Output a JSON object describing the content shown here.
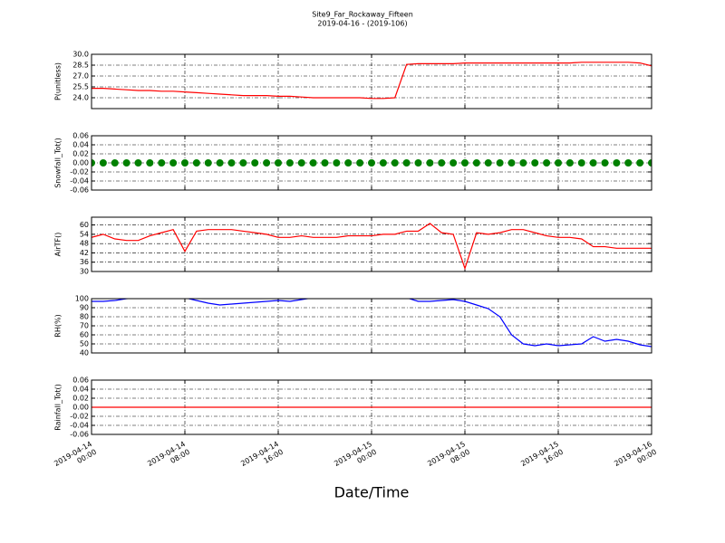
{
  "figure": {
    "title": "Site9_Far_Rockaway_Fifteen",
    "subtitle": "2019-04-16 - (2019-106)",
    "xlabel": "Date/Time"
  },
  "chart_data": [
    {
      "type": "line",
      "ylabel": "P(unitless)",
      "color": "#ff0000",
      "grid": true,
      "xlim": [
        "2019-04-14 00:00",
        "2019-04-16 00:00"
      ],
      "xticks": [
        "2019-04-14 00:00",
        "2019-04-14 08:00",
        "2019-04-14 16:00",
        "2019-04-15 00:00",
        "2019-04-15 08:00",
        "2019-04-15 16:00",
        "2019-04-16 00:00"
      ],
      "ylim": [
        22.5,
        30
      ],
      "yticks": [
        {
          "value": 24,
          "label": "24.0"
        },
        25.5,
        {
          "value": 27,
          "label": "27.0"
        },
        28.5,
        {
          "value": 30,
          "label": "30.0"
        }
      ],
      "x": [
        "2019-04-14 00:00",
        "2019-04-14 01:00",
        "2019-04-14 02:00",
        "2019-04-14 03:00",
        "2019-04-14 04:00",
        "2019-04-14 05:00",
        "2019-04-14 06:00",
        "2019-04-14 07:00",
        "2019-04-14 08:00",
        "2019-04-14 09:00",
        "2019-04-14 10:00",
        "2019-04-14 11:00",
        "2019-04-14 12:00",
        "2019-04-14 13:00",
        "2019-04-14 14:00",
        "2019-04-14 15:00",
        "2019-04-14 16:00",
        "2019-04-14 17:00",
        "2019-04-14 18:00",
        "2019-04-14 19:00",
        "2019-04-14 20:00",
        "2019-04-14 21:00",
        "2019-04-14 22:00",
        "2019-04-14 23:00",
        "2019-04-15 00:00",
        "2019-04-15 01:00",
        "2019-04-15 02:00",
        "2019-04-15 03:00",
        "2019-04-15 04:00",
        "2019-04-15 05:00",
        "2019-04-15 06:00",
        "2019-04-15 07:00",
        "2019-04-15 08:00",
        "2019-04-15 09:00",
        "2019-04-15 10:00",
        "2019-04-15 11:00",
        "2019-04-15 12:00",
        "2019-04-15 13:00",
        "2019-04-15 14:00",
        "2019-04-15 15:00",
        "2019-04-15 16:00",
        "2019-04-15 17:00",
        "2019-04-15 18:00",
        "2019-04-15 19:00",
        "2019-04-15 20:00",
        "2019-04-15 21:00",
        "2019-04-15 22:00",
        "2019-04-15 23:00",
        "2019-04-16 00:00"
      ],
      "values": [
        25.3,
        25.3,
        25.2,
        25.1,
        25.0,
        25.0,
        24.9,
        24.9,
        24.8,
        24.7,
        24.6,
        24.5,
        24.4,
        24.3,
        24.3,
        24.3,
        24.2,
        24.2,
        24.1,
        24.0,
        24.0,
        24.0,
        24.0,
        24.0,
        23.9,
        23.9,
        24.0,
        28.6,
        28.7,
        28.7,
        28.7,
        28.7,
        28.8,
        28.8,
        28.8,
        28.8,
        28.8,
        28.8,
        28.8,
        28.8,
        28.8,
        28.8,
        28.9,
        28.9,
        28.9,
        28.9,
        28.9,
        28.8,
        28.4
      ]
    },
    {
      "type": "scatter",
      "ylabel": "Snowfall_Tot()",
      "color": "#008000",
      "grid": true,
      "xlim": [
        "2019-04-14 00:00",
        "2019-04-16 00:00"
      ],
      "xticks": [
        "2019-04-14 00:00",
        "2019-04-14 08:00",
        "2019-04-14 16:00",
        "2019-04-15 00:00",
        "2019-04-15 08:00",
        "2019-04-15 16:00",
        "2019-04-16 00:00"
      ],
      "ylim": [
        -0.06,
        0.06
      ],
      "yticks": [
        -0.06,
        -0.04,
        -0.02,
        {
          "value": 0,
          "label": "0.00"
        },
        0.02,
        0.04,
        0.06
      ],
      "x": [
        "2019-04-14 00:00",
        "2019-04-14 01:00",
        "2019-04-14 02:00",
        "2019-04-14 03:00",
        "2019-04-14 04:00",
        "2019-04-14 05:00",
        "2019-04-14 06:00",
        "2019-04-14 07:00",
        "2019-04-14 08:00",
        "2019-04-14 09:00",
        "2019-04-14 10:00",
        "2019-04-14 11:00",
        "2019-04-14 12:00",
        "2019-04-14 13:00",
        "2019-04-14 14:00",
        "2019-04-14 15:00",
        "2019-04-14 16:00",
        "2019-04-14 17:00",
        "2019-04-14 18:00",
        "2019-04-14 19:00",
        "2019-04-14 20:00",
        "2019-04-14 21:00",
        "2019-04-14 22:00",
        "2019-04-14 23:00",
        "2019-04-15 00:00",
        "2019-04-15 01:00",
        "2019-04-15 02:00",
        "2019-04-15 03:00",
        "2019-04-15 04:00",
        "2019-04-15 05:00",
        "2019-04-15 06:00",
        "2019-04-15 07:00",
        "2019-04-15 08:00",
        "2019-04-15 09:00",
        "2019-04-15 10:00",
        "2019-04-15 11:00",
        "2019-04-15 12:00",
        "2019-04-15 13:00",
        "2019-04-15 14:00",
        "2019-04-15 15:00",
        "2019-04-15 16:00",
        "2019-04-15 17:00",
        "2019-04-15 18:00",
        "2019-04-15 19:00",
        "2019-04-15 20:00",
        "2019-04-15 21:00",
        "2019-04-15 22:00",
        "2019-04-15 23:00",
        "2019-04-16 00:00"
      ],
      "values": [
        0,
        0,
        0,
        0,
        0,
        0,
        0,
        0,
        0,
        0,
        0,
        0,
        0,
        0,
        0,
        0,
        0,
        0,
        0,
        0,
        0,
        0,
        0,
        0,
        0,
        0,
        0,
        0,
        0,
        0,
        0,
        0,
        0,
        0,
        0,
        0,
        0,
        0,
        0,
        0,
        0,
        0,
        0,
        0,
        0,
        0,
        0,
        0,
        0
      ]
    },
    {
      "type": "line",
      "ylabel": "AirTF()",
      "color": "#ff0000",
      "grid": true,
      "xlim": [
        "2019-04-14 00:00",
        "2019-04-16 00:00"
      ],
      "xticks": [
        "2019-04-14 00:00",
        "2019-04-14 08:00",
        "2019-04-14 16:00",
        "2019-04-15 00:00",
        "2019-04-15 08:00",
        "2019-04-15 16:00",
        "2019-04-16 00:00"
      ],
      "ylim": [
        30,
        65
      ],
      "yticks": [
        30,
        36,
        42,
        48,
        54,
        60
      ],
      "x": [
        "2019-04-14 00:00",
        "2019-04-14 01:00",
        "2019-04-14 02:00",
        "2019-04-14 03:00",
        "2019-04-14 04:00",
        "2019-04-14 05:00",
        "2019-04-14 06:00",
        "2019-04-14 07:00",
        "2019-04-14 08:00",
        "2019-04-14 09:00",
        "2019-04-14 10:00",
        "2019-04-14 11:00",
        "2019-04-14 12:00",
        "2019-04-14 13:00",
        "2019-04-14 14:00",
        "2019-04-14 15:00",
        "2019-04-14 16:00",
        "2019-04-14 17:00",
        "2019-04-14 18:00",
        "2019-04-14 19:00",
        "2019-04-14 20:00",
        "2019-04-14 21:00",
        "2019-04-14 22:00",
        "2019-04-14 23:00",
        "2019-04-15 00:00",
        "2019-04-15 01:00",
        "2019-04-15 02:00",
        "2019-04-15 03:00",
        "2019-04-15 04:00",
        "2019-04-15 05:00",
        "2019-04-15 06:00",
        "2019-04-15 07:00",
        "2019-04-15 08:00",
        "2019-04-15 09:00",
        "2019-04-15 10:00",
        "2019-04-15 11:00",
        "2019-04-15 12:00",
        "2019-04-15 13:00",
        "2019-04-15 14:00",
        "2019-04-15 15:00",
        "2019-04-15 16:00",
        "2019-04-15 17:00",
        "2019-04-15 18:00",
        "2019-04-15 19:00",
        "2019-04-15 20:00",
        "2019-04-15 21:00",
        "2019-04-15 22:00",
        "2019-04-15 23:00",
        "2019-04-16 00:00"
      ],
      "values": [
        52,
        54,
        51,
        50,
        50,
        53,
        55,
        57,
        43,
        56,
        57,
        57,
        57,
        56,
        55,
        54,
        52,
        52,
        53,
        52,
        52,
        52,
        53,
        53,
        53,
        54,
        54,
        56,
        56,
        61,
        55,
        54,
        32,
        55,
        54,
        55,
        57,
        57,
        55,
        53,
        52,
        52,
        51,
        46,
        46,
        45,
        45,
        45,
        45
      ]
    },
    {
      "type": "line",
      "ylabel": "RH(%)",
      "color": "#0000ff",
      "grid": true,
      "xlim": [
        "2019-04-14 00:00",
        "2019-04-16 00:00"
      ],
      "xticks": [
        "2019-04-14 00:00",
        "2019-04-14 08:00",
        "2019-04-14 16:00",
        "2019-04-15 00:00",
        "2019-04-15 08:00",
        "2019-04-15 16:00",
        "2019-04-16 00:00"
      ],
      "ylim": [
        40,
        100
      ],
      "yticks": [
        40,
        50,
        60,
        70,
        80,
        90,
        100
      ],
      "x": [
        "2019-04-14 00:00",
        "2019-04-14 01:00",
        "2019-04-14 02:00",
        "2019-04-14 03:00",
        "2019-04-14 04:00",
        "2019-04-14 05:00",
        "2019-04-14 06:00",
        "2019-04-14 07:00",
        "2019-04-14 08:00",
        "2019-04-14 09:00",
        "2019-04-14 10:00",
        "2019-04-14 11:00",
        "2019-04-14 12:00",
        "2019-04-14 13:00",
        "2019-04-14 14:00",
        "2019-04-14 15:00",
        "2019-04-14 16:00",
        "2019-04-14 17:00",
        "2019-04-14 18:00",
        "2019-04-14 19:00",
        "2019-04-14 20:00",
        "2019-04-14 21:00",
        "2019-04-14 22:00",
        "2019-04-14 23:00",
        "2019-04-15 00:00",
        "2019-04-15 01:00",
        "2019-04-15 02:00",
        "2019-04-15 03:00",
        "2019-04-15 04:00",
        "2019-04-15 05:00",
        "2019-04-15 06:00",
        "2019-04-15 07:00",
        "2019-04-15 08:00",
        "2019-04-15 09:00",
        "2019-04-15 10:00",
        "2019-04-15 11:00",
        "2019-04-15 12:00",
        "2019-04-15 13:00",
        "2019-04-15 14:00",
        "2019-04-15 15:00",
        "2019-04-15 16:00",
        "2019-04-15 17:00",
        "2019-04-15 18:00",
        "2019-04-15 19:00",
        "2019-04-15 20:00",
        "2019-04-15 21:00",
        "2019-04-15 22:00",
        "2019-04-15 23:00",
        "2019-04-16 00:00"
      ],
      "values": [
        97,
        97,
        98,
        100,
        101,
        101,
        101,
        101,
        101,
        98,
        95,
        93,
        94,
        95,
        96,
        97,
        98,
        97,
        99,
        101,
        101,
        101,
        101,
        101,
        101,
        101,
        101,
        101,
        97,
        97,
        98,
        99,
        97,
        93,
        89,
        80,
        60,
        50,
        48,
        50,
        48,
        49,
        50,
        58,
        53,
        55,
        53,
        49,
        47
      ]
    },
    {
      "type": "line",
      "ylabel": "Rainfall_Tot()",
      "color": "#ff0000",
      "grid": true,
      "xlim": [
        "2019-04-14 00:00",
        "2019-04-16 00:00"
      ],
      "xticks": [
        {
          "value": "2019-04-14 00:00",
          "label": "2019-04-14\n00:00"
        },
        {
          "value": "2019-04-14 08:00",
          "label": "2019-04-14\n08:00"
        },
        {
          "value": "2019-04-14 16:00",
          "label": "2019-04-14\n16:00"
        },
        {
          "value": "2019-04-15 00:00",
          "label": "2019-04-15\n00:00"
        },
        {
          "value": "2019-04-15 08:00",
          "label": "2019-04-15\n08:00"
        },
        {
          "value": "2019-04-15 16:00",
          "label": "2019-04-15\n16:00"
        },
        {
          "value": "2019-04-16 00:00",
          "label": "2019-04-16\n00:00"
        }
      ],
      "ylim": [
        -0.06,
        0.06
      ],
      "yticks": [
        -0.06,
        -0.04,
        -0.02,
        {
          "value": 0,
          "label": "0.00"
        },
        0.02,
        0.04,
        0.06
      ],
      "x": [
        "2019-04-14 00:00",
        "2019-04-14 01:00",
        "2019-04-14 02:00",
        "2019-04-14 03:00",
        "2019-04-14 04:00",
        "2019-04-14 05:00",
        "2019-04-14 06:00",
        "2019-04-14 07:00",
        "2019-04-14 08:00",
        "2019-04-14 09:00",
        "2019-04-14 10:00",
        "2019-04-14 11:00",
        "2019-04-14 12:00",
        "2019-04-14 13:00",
        "2019-04-14 14:00",
        "2019-04-14 15:00",
        "2019-04-14 16:00",
        "2019-04-14 17:00",
        "2019-04-14 18:00",
        "2019-04-14 19:00",
        "2019-04-14 20:00",
        "2019-04-14 21:00",
        "2019-04-14 22:00",
        "2019-04-14 23:00",
        "2019-04-15 00:00",
        "2019-04-15 01:00",
        "2019-04-15 02:00",
        "2019-04-15 03:00",
        "2019-04-15 04:00",
        "2019-04-15 05:00",
        "2019-04-15 06:00",
        "2019-04-15 07:00",
        "2019-04-15 08:00",
        "2019-04-15 09:00",
        "2019-04-15 10:00",
        "2019-04-15 11:00",
        "2019-04-15 12:00",
        "2019-04-15 13:00",
        "2019-04-15 14:00",
        "2019-04-15 15:00",
        "2019-04-15 16:00",
        "2019-04-15 17:00",
        "2019-04-15 18:00",
        "2019-04-15 19:00",
        "2019-04-15 20:00",
        "2019-04-15 21:00",
        "2019-04-15 22:00",
        "2019-04-15 23:00",
        "2019-04-16 00:00"
      ],
      "values": [
        0,
        0,
        0,
        0,
        0,
        0,
        0,
        0,
        0,
        0,
        0,
        0,
        0,
        0,
        0,
        0,
        0,
        0,
        0,
        0,
        0,
        0,
        0,
        0,
        0,
        0,
        0,
        0,
        0,
        0,
        0,
        0,
        0,
        0,
        0,
        0,
        0,
        0,
        0,
        0,
        0,
        0,
        0,
        0,
        0,
        0,
        0,
        0,
        0
      ]
    }
  ]
}
